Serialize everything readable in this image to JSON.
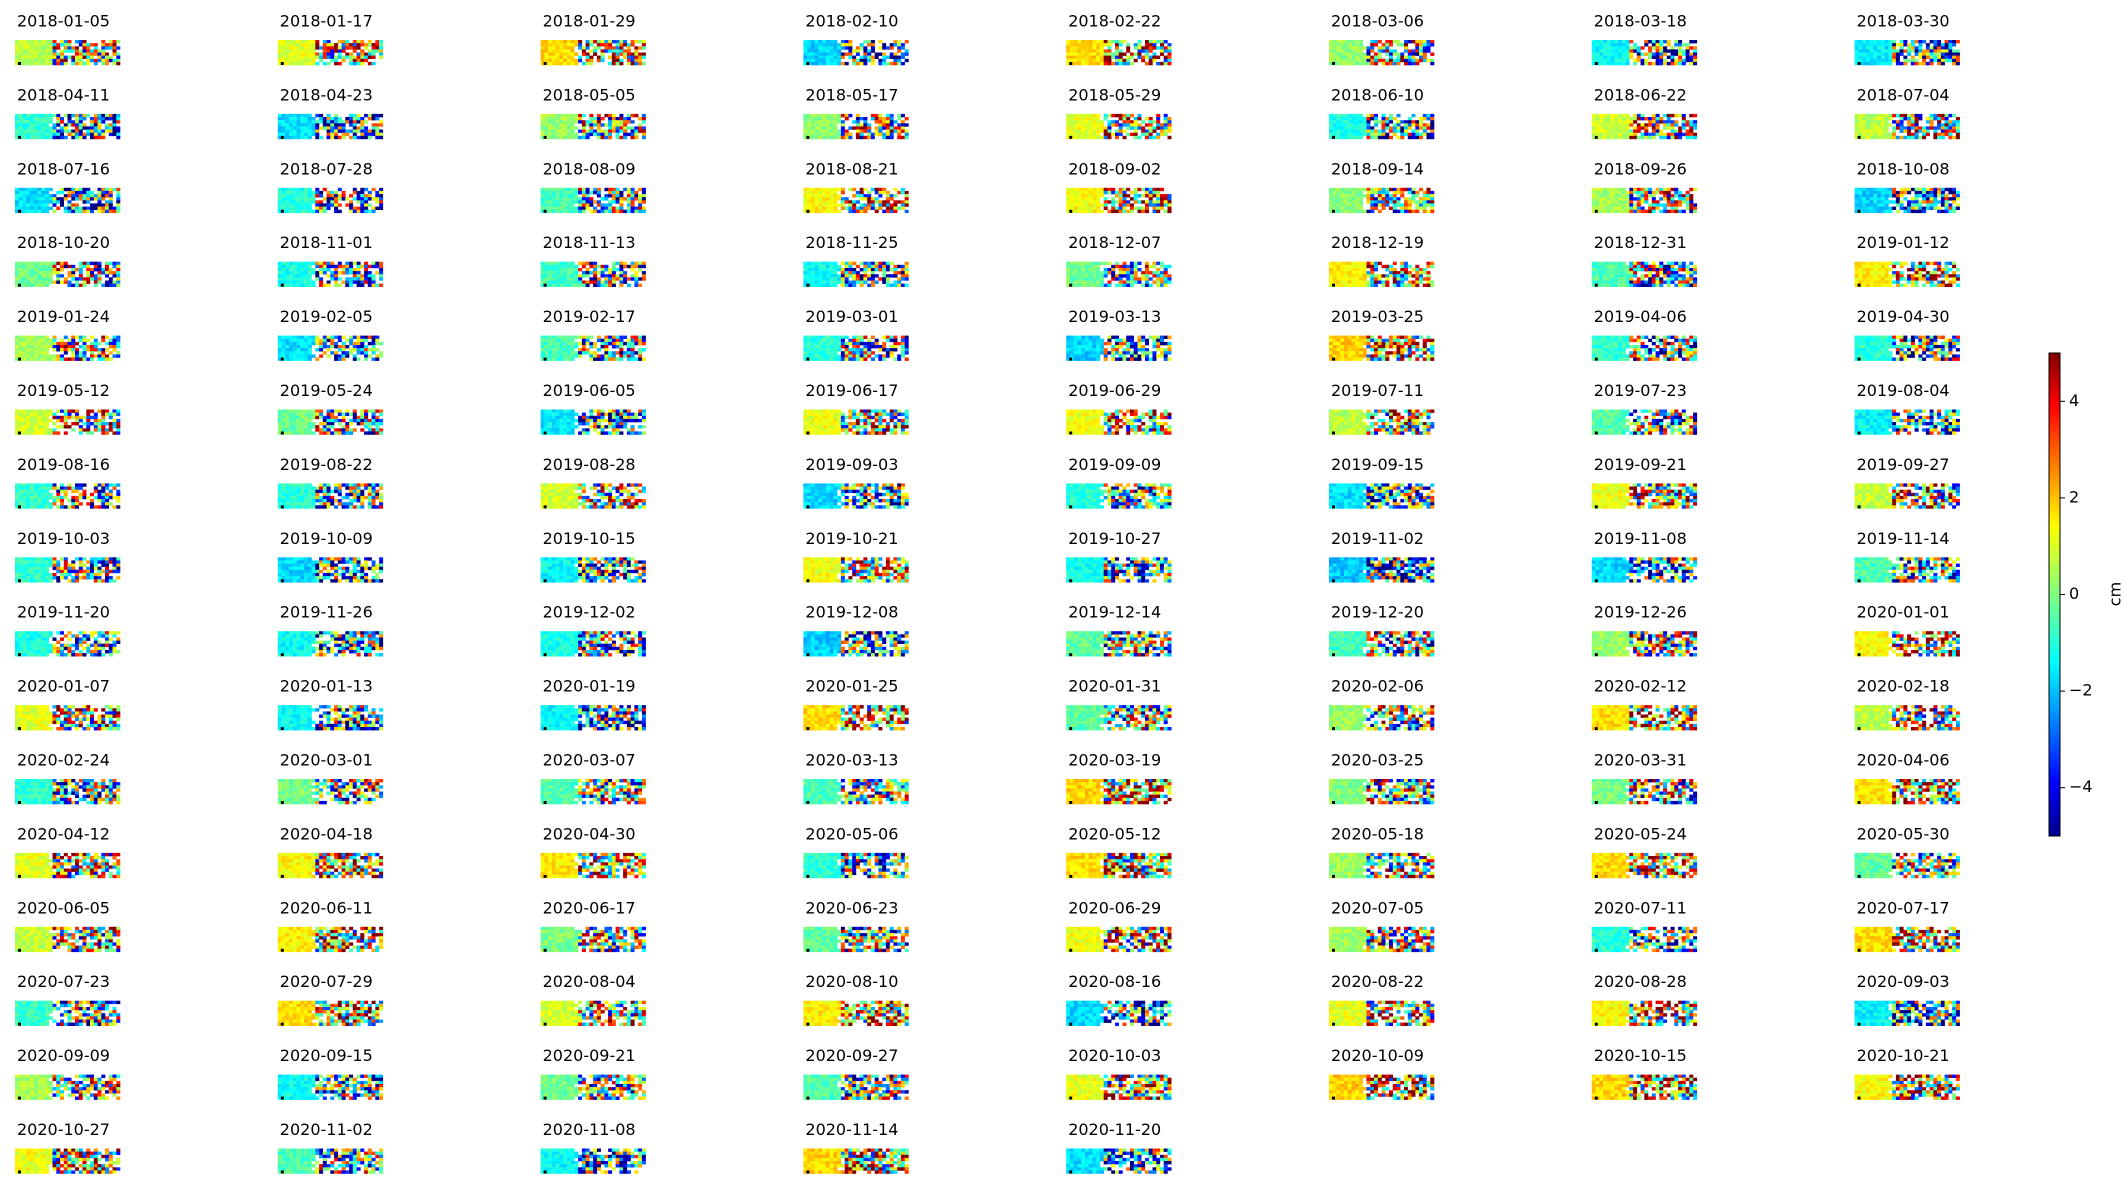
{
  "chart_data": {
    "type": "image-grid",
    "panels": [
      "2018-01-05",
      "2018-01-17",
      "2018-01-29",
      "2018-02-10",
      "2018-02-22",
      "2018-03-06",
      "2018-03-18",
      "2018-03-30",
      "2018-04-11",
      "2018-04-23",
      "2018-05-05",
      "2018-05-17",
      "2018-05-29",
      "2018-06-10",
      "2018-06-22",
      "2018-07-04",
      "2018-07-16",
      "2018-07-28",
      "2018-08-09",
      "2018-08-21",
      "2018-09-02",
      "2018-09-14",
      "2018-09-26",
      "2018-10-08",
      "2018-10-20",
      "2018-11-01",
      "2018-11-13",
      "2018-11-25",
      "2018-12-07",
      "2018-12-19",
      "2018-12-31",
      "2019-01-12",
      "2019-01-24",
      "2019-02-05",
      "2019-02-17",
      "2019-03-01",
      "2019-03-13",
      "2019-03-25",
      "2019-04-06",
      "2019-04-30",
      "2019-05-12",
      "2019-05-24",
      "2019-06-05",
      "2019-06-17",
      "2019-06-29",
      "2019-07-11",
      "2019-07-23",
      "2019-08-04",
      "2019-08-16",
      "2019-08-22",
      "2019-08-28",
      "2019-09-03",
      "2019-09-09",
      "2019-09-15",
      "2019-09-21",
      "2019-09-27",
      "2019-10-03",
      "2019-10-09",
      "2019-10-15",
      "2019-10-21",
      "2019-10-27",
      "2019-11-02",
      "2019-11-08",
      "2019-11-14",
      "2019-11-20",
      "2019-11-26",
      "2019-12-02",
      "2019-12-08",
      "2019-12-14",
      "2019-12-20",
      "2019-12-26",
      "2020-01-01",
      "2020-01-07",
      "2020-01-13",
      "2020-01-19",
      "2020-01-25",
      "2020-01-31",
      "2020-02-06",
      "2020-02-12",
      "2020-02-18",
      "2020-02-24",
      "2020-03-01",
      "2020-03-07",
      "2020-03-13",
      "2020-03-19",
      "2020-03-25",
      "2020-03-31",
      "2020-04-06",
      "2020-04-12",
      "2020-04-18",
      "2020-04-30",
      "2020-05-06",
      "2020-05-12",
      "2020-05-18",
      "2020-05-24",
      "2020-05-30",
      "2020-06-05",
      "2020-06-11",
      "2020-06-17",
      "2020-06-23",
      "2020-06-29",
      "2020-07-05",
      "2020-07-11",
      "2020-07-17",
      "2020-07-23",
      "2020-07-29",
      "2020-08-04",
      "2020-08-10",
      "2020-08-16",
      "2020-08-22",
      "2020-08-28",
      "2020-09-03",
      "2020-09-09",
      "2020-09-15",
      "2020-09-21",
      "2020-09-27",
      "2020-10-03",
      "2020-10-09",
      "2020-10-15",
      "2020-10-21",
      "2020-10-27",
      "2020-11-02",
      "2020-11-08",
      "2020-11-14",
      "2020-11-20"
    ],
    "columns": 8,
    "colorbar": {
      "label": "cm",
      "colormap": "jet",
      "lim": [
        -5,
        5
      ],
      "ticks": [
        {
          "value": -4,
          "label": "−4"
        },
        {
          "value": -2,
          "label": "−2"
        },
        0,
        2,
        4
      ]
    }
  }
}
